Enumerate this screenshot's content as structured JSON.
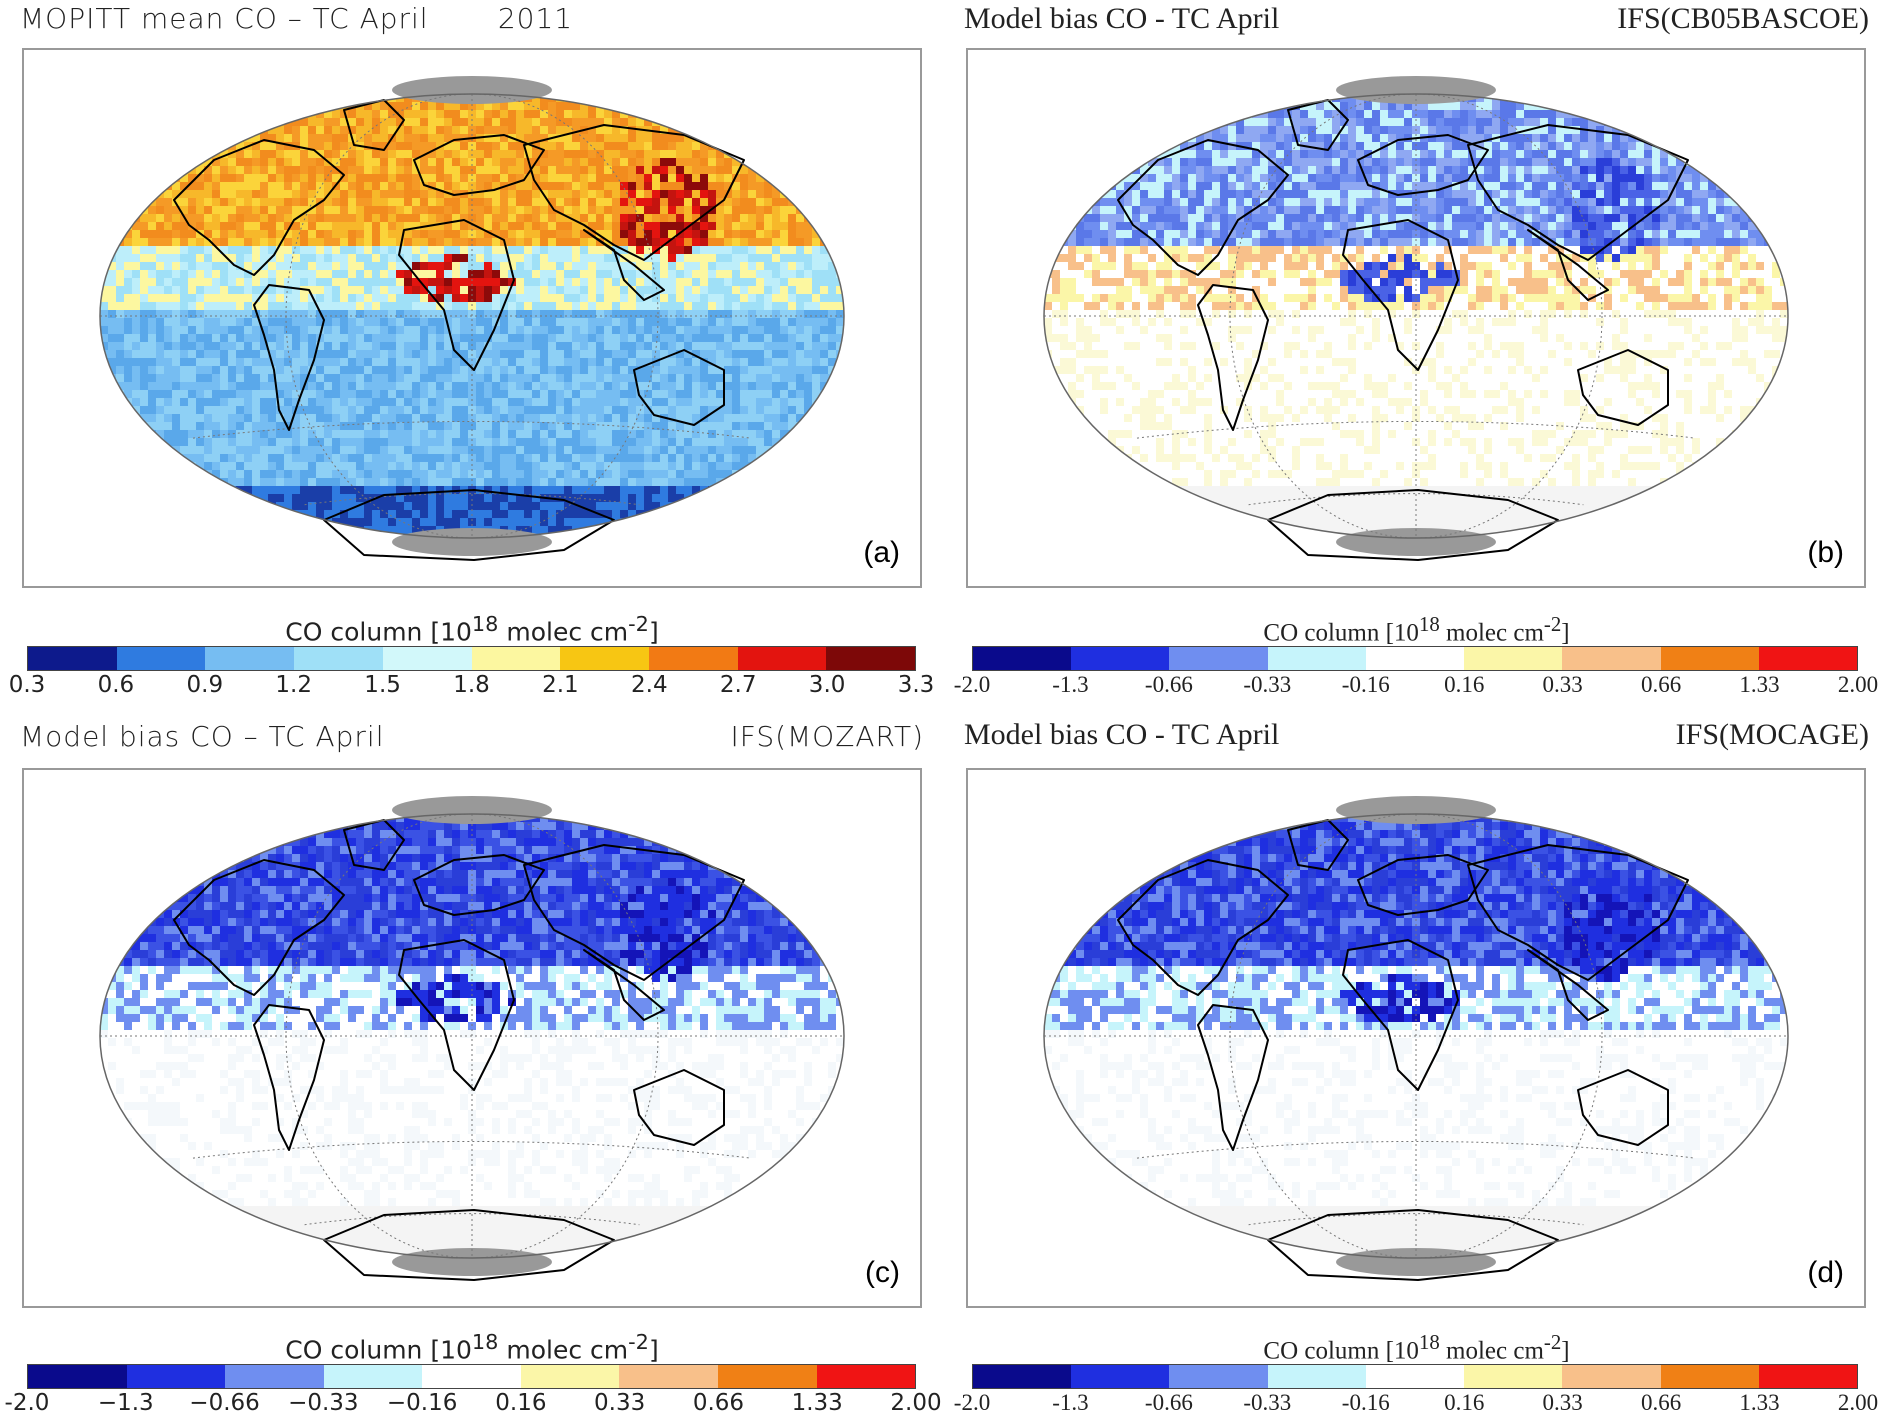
{
  "panels": [
    {
      "id": "a",
      "title_left": "MOPITT mean CO – TC April       2011",
      "title_right": "",
      "letter": "(a)",
      "style": "sans",
      "colorbar": {
        "title": "CO column [10",
        "title_sup": "18",
        "title_mid": " molec cm",
        "title_sup2": "-2",
        "title_end": "]",
        "colors": [
          "#0d1a8c",
          "#2f7be0",
          "#76bdf2",
          "#9fe0f7",
          "#d2f8fa",
          "#fcf7a0",
          "#f7c613",
          "#f27a14",
          "#e3140f",
          "#7d0808"
        ],
        "ticks": [
          "0.3",
          "0.6",
          "0.9",
          "1.2",
          "1.5",
          "1.8",
          "2.1",
          "2.4",
          "2.7",
          "3.0",
          "3.3"
        ]
      },
      "map_palette": {
        "north": [
          "#f28c1e",
          "#f7b82a",
          "#fbd43a",
          "#f59a26"
        ],
        "hot": [
          "#c4140f",
          "#e3140f",
          "#8c0a0a"
        ],
        "tropics": [
          "#9fe0f7",
          "#bdeefa",
          "#fcf7a0"
        ],
        "south": [
          "#76bdf2",
          "#8ed0f5",
          "#5aa8ea"
        ],
        "ant": [
          "#1a3ea8",
          "#2f7be0"
        ]
      }
    },
    {
      "id": "b",
      "title_left": "Model bias CO - TC April",
      "title_right": "IFS(CB05BASCOE)",
      "letter": "(b)",
      "style": "serif",
      "colorbar": {
        "title": "CO column [10",
        "title_sup": "18",
        "title_mid": " molec cm",
        "title_sup2": "-2",
        "title_end": "]",
        "colors": [
          "#0a0a8c",
          "#1f2fe0",
          "#6f8ef0",
          "#c6f4fb",
          "#ffffff",
          "#fbf6a8",
          "#f8c08a",
          "#f08015",
          "#f01414"
        ],
        "ticks": [
          "-2.0",
          "-1.3",
          "-0.66",
          "-0.33",
          "-0.16",
          "0.16",
          "0.33",
          "0.66",
          "1.33",
          "2.00"
        ]
      },
      "map_palette": {
        "north": [
          "#6f8ef0",
          "#8fa8f2",
          "#c6f4fb",
          "#5a78e8"
        ],
        "hot": [
          "#2a3ed8",
          "#4a62e6"
        ],
        "tropics": [
          "#fbf6a8",
          "#f8c08a",
          "#ffffff"
        ],
        "south": [
          "#ffffff",
          "#fbf9d6",
          "#ffffff"
        ],
        "ant": [
          "#f4f4f4"
        ]
      }
    },
    {
      "id": "c",
      "title_left": "Model bias CO – TC April",
      "title_right": "IFS(MOZART)",
      "letter": "(c)",
      "style": "sans",
      "colorbar": {
        "title": "CO column [10",
        "title_sup": "18",
        "title_mid": " molec cm",
        "title_sup2": "-2",
        "title_end": "]",
        "colors": [
          "#0a0a8c",
          "#1f2fe0",
          "#6f8ef0",
          "#c6f4fb",
          "#ffffff",
          "#fbf6a8",
          "#f8c08a",
          "#f08015",
          "#f01414"
        ],
        "ticks": [
          "-2.0",
          "−1.3",
          "−0.66",
          "−0.33",
          "−0.16",
          "0.16",
          "0.33",
          "0.66",
          "1.33",
          "2.00"
        ]
      },
      "map_palette": {
        "north": [
          "#1f2fe0",
          "#2a3ed8",
          "#3b52e4",
          "#6f8ef0"
        ],
        "hot": [
          "#1414b8",
          "#1f2fe0"
        ],
        "tropics": [
          "#6f8ef0",
          "#c6f4fb",
          "#ffffff"
        ],
        "south": [
          "#ffffff",
          "#ffffff",
          "#f4f8fb"
        ],
        "ant": [
          "#f4f4f4"
        ]
      }
    },
    {
      "id": "d",
      "title_left": "Model bias CO - TC April",
      "title_right": "IFS(MOCAGE)",
      "letter": "(d)",
      "style": "serif",
      "colorbar": {
        "title": "CO column [10",
        "title_sup": "18",
        "title_mid": " molec cm",
        "title_sup2": "-2",
        "title_end": "]",
        "colors": [
          "#0a0a8c",
          "#1f2fe0",
          "#6f8ef0",
          "#c6f4fb",
          "#ffffff",
          "#fbf6a8",
          "#f8c08a",
          "#f08015",
          "#f01414"
        ],
        "ticks": [
          "-2.0",
          "-1.3",
          "-0.66",
          "-0.33",
          "-0.16",
          "0.16",
          "0.33",
          "0.66",
          "1.33",
          "2.00"
        ]
      },
      "map_palette": {
        "north": [
          "#1f2fe0",
          "#2a3ed8",
          "#3b52e4",
          "#6f8ef0"
        ],
        "hot": [
          "#1414b8",
          "#1f2fe0"
        ],
        "tropics": [
          "#6f8ef0",
          "#c6f4fb",
          "#ffffff"
        ],
        "south": [
          "#ffffff",
          "#ffffff",
          "#f4f8fb"
        ],
        "ant": [
          "#f4f4f4"
        ]
      }
    }
  ]
}
